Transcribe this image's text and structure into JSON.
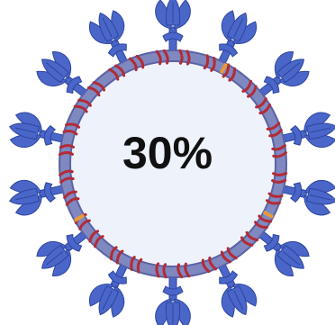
{
  "figure": {
    "center_text": "30%",
    "icon": "coronavirus-virion-icon",
    "colors": {
      "membrane_fill": "#eef3fb",
      "membrane_ring": "#8088c0",
      "membrane_ring_edge": "#5a62a6",
      "spike_protein": "#4a66c8",
      "spike_protein_dark": "#2d45a0",
      "membrane_protein": "#b22b35",
      "envelope_protein": "#e89a3a",
      "text": "#111111"
    }
  }
}
